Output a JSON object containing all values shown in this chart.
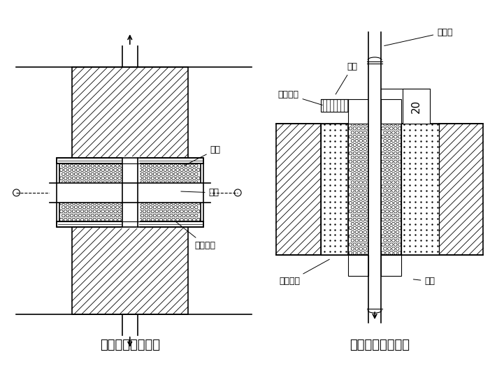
{
  "bg_color": "#ffffff",
  "line_color": "#000000",
  "title_left": "防水套管穿墙做法",
  "title_right": "套管穿楼板的做法",
  "label_taoguan_left": "套管",
  "label_liqing_left": "沥青",
  "label_liqing_modi_left": "沥青麻刀",
  "label_meiqiguan_right": "煤气管",
  "label_liqing_right": "沥青",
  "label_liqing_modi_right": "沥青麻刀",
  "label_shuini_right": "水泥砂浆",
  "label_taoguan_right": "套管",
  "label_20": "20",
  "title_fontsize": 13,
  "label_fontsize": 9
}
